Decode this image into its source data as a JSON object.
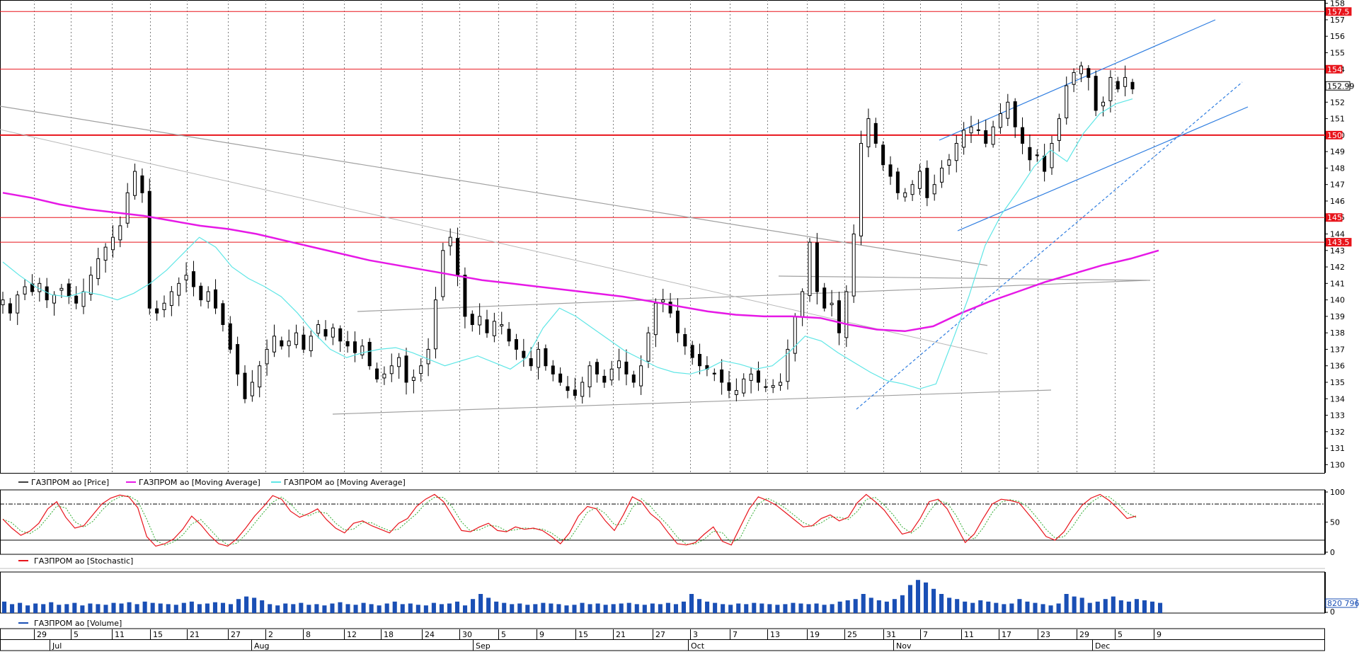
{
  "chart_data": {
    "type": "candlestick",
    "instrument": "ГАЗПРОМ ао",
    "price_axis": {
      "ticks": [
        130,
        131,
        132,
        133,
        134,
        135,
        136,
        137,
        138,
        139,
        140,
        141,
        142,
        143,
        144,
        145,
        146,
        147,
        148,
        149,
        150,
        151,
        152,
        153,
        154,
        155,
        156,
        157,
        158
      ],
      "range": [
        129.5,
        158.2
      ]
    },
    "horizontal_levels": [
      {
        "value": 157.5,
        "label": "157.5",
        "color": "#e8141b"
      },
      {
        "value": 154,
        "label": "154",
        "color": "#e8141b"
      },
      {
        "value": 150,
        "label": "150",
        "color": "#e8141b"
      },
      {
        "value": 145,
        "label": "145",
        "color": "#e8141b"
      },
      {
        "value": 143.5,
        "label": "143.5",
        "color": "#e8141b"
      }
    ],
    "last_price_label": "152.99",
    "x_axis": {
      "day_ticks": [
        "29",
        "5",
        "11",
        "15",
        "21",
        "27",
        "2",
        "8",
        "12",
        "18",
        "24",
        "30",
        "5",
        "9",
        "15",
        "21",
        "27",
        "3",
        "7",
        "13",
        "19",
        "25",
        "31",
        "7",
        "11",
        "17",
        "23",
        "29",
        "5",
        "9"
      ],
      "months": [
        "Jul",
        "Aug",
        "Sep",
        "Oct",
        "Nov",
        "Dec"
      ]
    },
    "series": [
      {
        "name": "ГАЗПРОМ ао [Price]",
        "color": "#000000",
        "close_path": [
          140,
          139.2,
          140.3,
          140.8,
          140.5,
          141,
          140,
          140.3,
          140.7,
          140.2,
          139.8,
          140.5,
          141.5,
          142.5,
          143.2,
          143.8,
          144.5,
          146.5,
          147.8,
          146.5,
          139.5,
          139.2,
          139.8,
          140.5,
          141,
          141.5,
          140.8,
          140,
          140.5,
          139.5,
          138.5,
          137,
          135.5,
          134,
          135,
          136,
          137,
          137.8,
          137.2,
          137.5,
          138,
          137,
          137.8,
          138.5,
          137.8,
          138.3,
          137.5,
          137.2,
          136.8,
          137.2,
          136,
          135.2,
          135.5,
          136,
          136.5,
          135,
          135.3,
          136,
          137,
          140,
          143,
          143.8,
          141.5,
          139,
          138.5,
          139,
          138,
          138.7,
          138.5,
          137.5,
          137,
          136.5,
          136,
          137,
          136,
          135.5,
          135,
          134.5,
          134.2,
          135,
          136,
          135.5,
          135,
          135.8,
          136.3,
          135.5,
          135,
          136,
          138,
          139.8,
          140,
          139.2,
          138,
          137.2,
          136.5,
          136,
          135.8,
          135.5,
          135,
          134.5,
          134.5,
          135.2,
          135.5,
          135,
          134.7,
          134.8,
          135,
          137,
          139,
          140.5,
          143.5,
          140.5,
          139.5,
          139.8,
          138,
          140.5,
          144,
          149.5,
          151,
          149.5,
          148.2,
          147.5,
          146.5,
          146.5,
          147,
          147.8,
          146.2,
          147,
          148,
          148.5,
          149.5,
          150.3,
          150.5,
          150.3,
          149.5,
          150.5,
          151.3,
          152,
          150.5,
          149.5,
          148.5,
          148.8,
          147.8,
          149.5,
          151,
          153,
          153.8,
          154.2,
          153.5,
          151.5,
          152,
          153.5,
          152.8,
          153.5,
          152.8
        ]
      },
      {
        "name": "ГАЗПРОМ ао [Moving Average]",
        "color": "#e619e6",
        "close_path": [
          146.5,
          146.2,
          145.8,
          145.5,
          145.3,
          145.1,
          144.8,
          144.5,
          144.3,
          144,
          143.6,
          143.2,
          142.8,
          142.4,
          142.1,
          141.8,
          141.5,
          141.2,
          141,
          140.8,
          140.6,
          140.4,
          140.2,
          139.9,
          139.6,
          139.3,
          139.1,
          139,
          139,
          138.9,
          138.5,
          138.2,
          138.1,
          138.4,
          139.2,
          139.9,
          140.5,
          141.1,
          141.6,
          142.1,
          142.5,
          143
        ]
      },
      {
        "name": "ГАЗПРОМ ао [Moving Average]",
        "color": "#5fe6e6",
        "close_path": [
          142.3,
          141.5,
          140.8,
          140.3,
          140.2,
          140.5,
          140.3,
          140,
          140.4,
          141,
          141.8,
          142.8,
          143.8,
          143.2,
          142,
          141.3,
          140.8,
          140.2,
          139.2,
          138,
          137,
          136.5,
          136.8,
          137,
          137.1,
          136.8,
          136.4,
          136,
          136.3,
          136.6,
          136.2,
          135.8,
          136.5,
          138.3,
          139.5,
          139,
          138.3,
          137.6,
          136.9,
          136.4,
          135.9,
          135.6,
          135.5,
          135.8,
          136.3,
          136.1,
          135.8,
          136,
          136.8,
          137.8,
          137.5,
          136.8,
          136.2,
          135.6,
          135.1,
          134.9,
          134.6,
          134.9,
          137.5,
          140.2,
          143.3,
          145.2,
          146.6,
          148.1,
          149.1,
          148.4,
          150.1,
          151.3,
          151.9,
          152.2
        ]
      }
    ]
  },
  "stochastic": {
    "name": "ГАЗПРОМ ао [Stochastic]",
    "ticks": [
      "100",
      "50",
      "0"
    ],
    "levels": [
      80,
      20
    ],
    "values": [
      55,
      40,
      28,
      35,
      48,
      72,
      84,
      58,
      40,
      44,
      62,
      80,
      90,
      95,
      92,
      74,
      26,
      10,
      14,
      22,
      38,
      60,
      46,
      28,
      14,
      10,
      22,
      40,
      60,
      76,
      94,
      88,
      68,
      58,
      64,
      72,
      54,
      40,
      32,
      48,
      52,
      44,
      38,
      32,
      48,
      56,
      76,
      88,
      96,
      84,
      60,
      36,
      34,
      42,
      48,
      36,
      34,
      42,
      38,
      40,
      36,
      26,
      14,
      32,
      60,
      76,
      72,
      52,
      36,
      62,
      92,
      84,
      64,
      52,
      32,
      14,
      12,
      16,
      30,
      42,
      18,
      12,
      42,
      72,
      92,
      86,
      78,
      66,
      54,
      42,
      44,
      56,
      62,
      52,
      58,
      82,
      96,
      84,
      70,
      50,
      30,
      34,
      56,
      84,
      88,
      72,
      44,
      16,
      30,
      56,
      80,
      88,
      86,
      82,
      64,
      46,
      26,
      20,
      34,
      58,
      78,
      90,
      96,
      86,
      72,
      56,
      60
    ]
  },
  "volume": {
    "name": "ГАЗПРОМ ао [Volume]",
    "last_label": "820 796",
    "values": [
      18,
      14,
      16,
      12,
      15,
      14,
      17,
      13,
      14,
      16,
      12,
      15,
      14,
      13,
      16,
      15,
      17,
      14,
      18,
      16,
      15,
      14,
      13,
      16,
      18,
      14,
      15,
      17,
      16,
      14,
      22,
      26,
      24,
      20,
      14,
      12,
      15,
      14,
      16,
      13,
      14,
      12,
      15,
      17,
      14,
      13,
      16,
      14,
      12,
      15,
      18,
      14,
      15,
      13,
      12,
      16,
      14,
      15,
      18,
      12,
      22,
      30,
      24,
      18,
      16,
      14,
      15,
      13,
      14,
      16,
      15,
      14,
      12,
      13,
      16,
      14,
      15,
      13,
      14,
      15,
      16,
      14,
      13,
      15,
      14,
      16,
      14,
      18,
      30,
      22,
      18,
      16,
      14,
      13,
      15,
      14,
      16,
      15,
      14,
      13,
      14,
      16,
      15,
      14,
      15,
      13,
      14,
      18,
      20,
      22,
      30,
      24,
      20,
      18,
      22,
      28,
      44,
      52,
      48,
      38,
      30,
      24,
      22,
      18,
      16,
      20,
      18,
      16,
      14,
      15,
      22,
      18,
      16,
      14,
      12,
      15,
      30,
      26,
      24,
      16,
      18,
      22,
      26,
      20,
      18,
      22,
      20,
      18,
      16
    ]
  },
  "legends": {
    "price": [
      {
        "label": "ГАЗПРОМ ао [Price]",
        "color": "#404040"
      },
      {
        "label": "ГАЗПРОМ ао [Moving Average]",
        "color": "#e619e6"
      },
      {
        "label": "ГАЗПРОМ ао [Moving Average]",
        "color": "#5fe6e6"
      }
    ],
    "stochastic": [
      {
        "label": "ГАЗПРОМ ао [Stochastic]",
        "color": "#e8141b"
      }
    ],
    "volume": [
      {
        "label": "ГАЗПРОМ ао [Volume]",
        "color": "#1a4fb5"
      }
    ]
  },
  "colors": {
    "red_level": "#e8141b",
    "trend_blue": "#2e7de0",
    "trend_gray": "#a0a0a0",
    "ma_magenta": "#e619e6",
    "ma_cyan": "#5fe6e6",
    "volume_blue": "#1a4fb5",
    "grid": "#808080"
  }
}
